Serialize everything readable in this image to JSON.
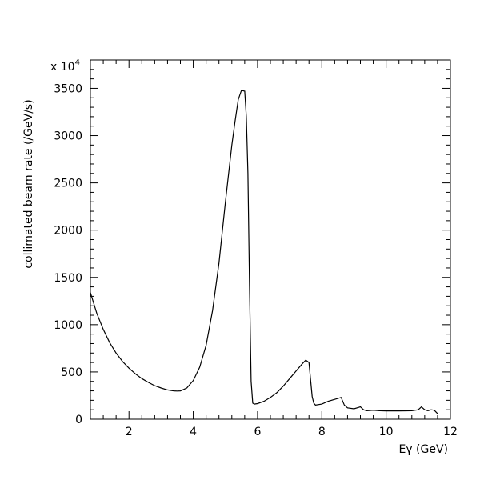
{
  "chart_data": {
    "type": "line",
    "title": "",
    "xlabel": "Eγ (GeV)",
    "ylabel": "collimated beam rate (/GeV/s)",
    "y_multiplier": "x 10",
    "y_multiplier_exp": "4",
    "xlim": [
      0.8,
      12
    ],
    "ylim": [
      0,
      3800
    ],
    "x_ticks": [
      2,
      4,
      6,
      8,
      10,
      12
    ],
    "y_ticks": [
      0,
      500,
      1000,
      1500,
      2000,
      2500,
      3000,
      3500
    ],
    "grid": false,
    "series": [
      {
        "x": [
          0.8,
          1.0,
          1.2,
          1.4,
          1.6,
          1.8,
          2.0,
          2.2,
          2.4,
          2.6,
          2.8,
          3.0,
          3.2,
          3.4,
          3.5,
          3.6,
          3.8,
          4.0,
          4.2,
          4.4,
          4.6,
          4.8,
          5.0,
          5.2,
          5.3,
          5.4,
          5.5,
          5.6,
          5.65,
          5.7,
          5.75,
          5.8,
          5.85,
          5.9,
          6.0,
          6.2,
          6.4,
          6.6,
          6.8,
          7.0,
          7.2,
          7.4,
          7.5,
          7.6,
          7.65,
          7.7,
          7.75,
          7.8,
          8.0,
          8.2,
          8.4,
          8.6,
          8.7,
          8.8,
          9.0,
          9.2,
          9.3,
          9.4,
          9.6,
          9.8,
          10.0,
          10.4,
          10.8,
          11.0,
          11.1,
          11.2,
          11.3,
          11.4,
          11.5,
          11.6
        ],
        "y": [
          1340,
          1120,
          950,
          810,
          700,
          610,
          540,
          480,
          430,
          390,
          355,
          330,
          310,
          300,
          298,
          300,
          330,
          410,
          550,
          780,
          1150,
          1650,
          2300,
          2900,
          3150,
          3380,
          3480,
          3470,
          3200,
          2600,
          1400,
          400,
          170,
          160,
          165,
          190,
          230,
          280,
          350,
          430,
          510,
          590,
          625,
          600,
          420,
          240,
          170,
          150,
          160,
          190,
          210,
          230,
          150,
          120,
          110,
          130,
          100,
          90,
          95,
          90,
          88,
          88,
          90,
          100,
          130,
          100,
          90,
          100,
          95,
          60
        ]
      }
    ]
  }
}
